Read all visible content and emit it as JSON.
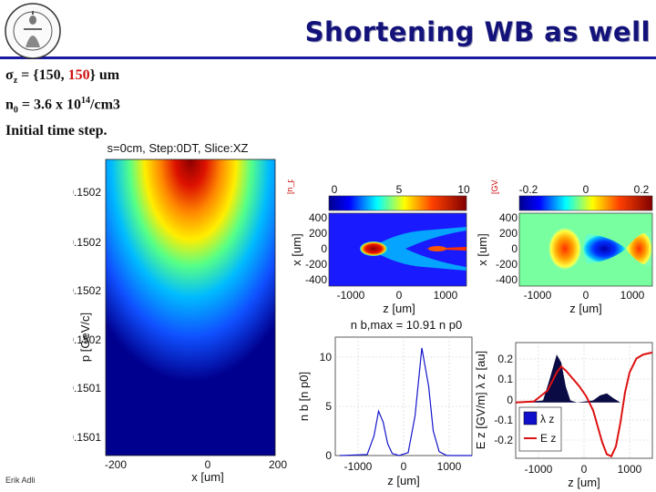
{
  "slide": {
    "title": "Shortening WB as well",
    "sigma_symbol": "σ",
    "sigma_sub": "z",
    "sigma_eq": " = {150, ",
    "sigma_red": "150",
    "sigma_rest": "} um",
    "n0_symbol": "n",
    "n0_sub": "0",
    "n0_eq": " = 3.6 x 10",
    "n0_exp": "14",
    "n0_unit": "/cm3",
    "timestep": "Initial time step.",
    "footer": "Erik Adli"
  },
  "colors": {
    "title": "#12127a",
    "rule": "#1a1aa0",
    "highlight": "#d01010",
    "beam_blue": "#1414cc",
    "field_red": "#dd1111"
  },
  "chart_data": [
    {
      "type": "scatter",
      "title": "s=0cm, Step:0DT, Slice:XZ",
      "xlabel": "x [um]",
      "ylabel": "p [GeV/c]",
      "x_ticks": [
        "-200",
        "0",
        "200"
      ],
      "y_ticks": [
        "0.1502",
        "0.1502",
        "0.1502",
        "0.1502",
        "0.1501",
        "0.1501"
      ],
      "xlim": [
        -200,
        200
      ],
      "ylim": [
        0.15005,
        0.15025
      ],
      "description_note": "phase-space density map, dense near x=0 at high p"
    },
    {
      "type": "heatmap",
      "title": "",
      "xlabel": "z [um]",
      "ylabel": "x [um]",
      "colorbar_ticks": [
        "0",
        "5",
        "10"
      ],
      "colorbar_label": "[n_p0]",
      "x_ticks": [
        "-1000",
        "0",
        "1000"
      ],
      "y_ticks": [
        "400",
        "200",
        "0",
        "-200",
        "-400"
      ],
      "xlim": [
        -1500,
        1500
      ],
      "ylim": [
        -450,
        450
      ]
    },
    {
      "type": "heatmap",
      "title": "",
      "xlabel": "z [um]",
      "ylabel": "x [um]",
      "colorbar_ticks": [
        "-0.2",
        "0",
        "0.2"
      ],
      "colorbar_label": "[GV/m]",
      "x_ticks": [
        "-1000",
        "0",
        "1000"
      ],
      "y_ticks": [
        "400",
        "200",
        "0",
        "-200",
        "-400"
      ],
      "xlim": [
        -1500,
        1500
      ],
      "ylim": [
        -450,
        450
      ]
    },
    {
      "type": "line",
      "title": "n b,max = 10.91 n p0",
      "xlabel": "z [um]",
      "ylabel": "n b [n p0]",
      "x_ticks": [
        "-1000",
        "0",
        "1000"
      ],
      "y_ticks": [
        "0",
        "5",
        "10"
      ],
      "xlim": [
        -1500,
        1500
      ],
      "ylim": [
        0,
        12
      ],
      "series": [
        {
          "x": [
            -1400,
            -800,
            -650,
            -550,
            -450,
            -350,
            -250,
            -100,
            100,
            250,
            400,
            550,
            650,
            780,
            950,
            1500
          ],
          "y": [
            0,
            0.1,
            2.0,
            4.5,
            3.4,
            1.2,
            0.2,
            0,
            0.3,
            4.0,
            10.9,
            7.0,
            2.5,
            0.4,
            0,
            0
          ]
        }
      ]
    },
    {
      "type": "line",
      "title": "",
      "xlabel": "z [um]",
      "ylabel": "E z [GV/m]  λ z [au]",
      "x_ticks": [
        "-1000",
        "0",
        "1000"
      ],
      "y_ticks": [
        "0.2",
        "0.1",
        "0",
        "-0.1",
        "-0.2"
      ],
      "xlim": [
        -1500,
        1500
      ],
      "ylim": [
        -0.28,
        0.3
      ],
      "legend": [
        "λ z",
        "E z"
      ],
      "series": [
        {
          "name": "λ z",
          "x": [
            -1400,
            -900,
            -750,
            -600,
            -500,
            -400,
            -300,
            -150,
            200,
            350,
            500,
            650,
            800,
            1000,
            1500
          ],
          "y": [
            0,
            0.01,
            0.12,
            0.24,
            0.2,
            0.08,
            0.01,
            0,
            0.01,
            0.035,
            0.045,
            0.02,
            0,
            0,
            0
          ]
        },
        {
          "name": "E z",
          "x": [
            -1500,
            -1100,
            -800,
            -600,
            -500,
            -400,
            -250,
            -100,
            50,
            200,
            300,
            400,
            500,
            600,
            700,
            800,
            900,
            1000,
            1150,
            1300,
            1500
          ],
          "y": [
            0,
            0.005,
            0.06,
            0.15,
            0.18,
            0.16,
            0.12,
            0.08,
            0.03,
            -0.04,
            -0.12,
            -0.2,
            -0.26,
            -0.27,
            -0.22,
            -0.1,
            0.05,
            0.15,
            0.22,
            0.24,
            0.25
          ]
        }
      ]
    }
  ]
}
